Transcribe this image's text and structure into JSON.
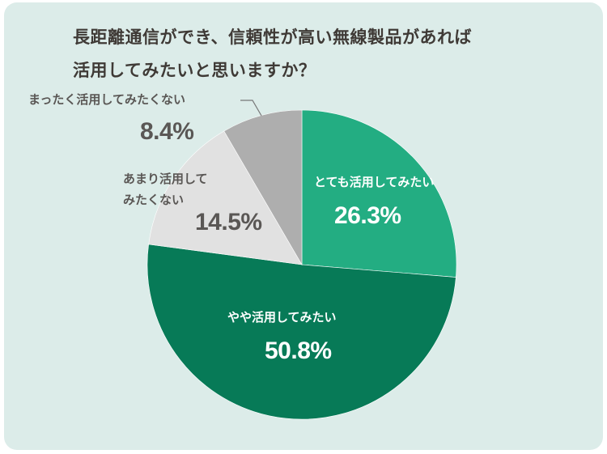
{
  "title": {
    "line1": "長距離通信ができ、信頼性が高い無線製品があれば",
    "line2": "活用してみたいと思いますか？"
  },
  "labels": {
    "very_much": {
      "text": "とても活用してみたい",
      "pct": "26.3%"
    },
    "somewhat": {
      "text": "やや活用してみたい",
      "pct": "50.8%"
    },
    "not_much": {
      "line1": "あまり活用して",
      "line2": "みたくない",
      "pct": "14.5%"
    },
    "not_at_all": {
      "text": "まったく活用してみたくない",
      "pct": "8.4%"
    }
  },
  "colors": {
    "background": "#dcece9",
    "very_much": "#23ad82",
    "somewhat": "#077a57",
    "not_much": "#e1e1e1",
    "not_at_all": "#aeaeae",
    "leader": "#777777"
  },
  "chart_data": {
    "type": "pie",
    "title": "長距離通信ができ、信頼性が高い無線製品があれば活用してみたいと思いますか？",
    "categories": [
      "とても活用してみたい",
      "やや活用してみたい",
      "あまり活用してみたくない",
      "まったく活用してみたくない"
    ],
    "values": [
      26.3,
      50.8,
      14.5,
      8.4
    ],
    "unit": "%",
    "start_angle": "12 o'clock",
    "direction": "clockwise",
    "legend": "none (inline labels)"
  }
}
